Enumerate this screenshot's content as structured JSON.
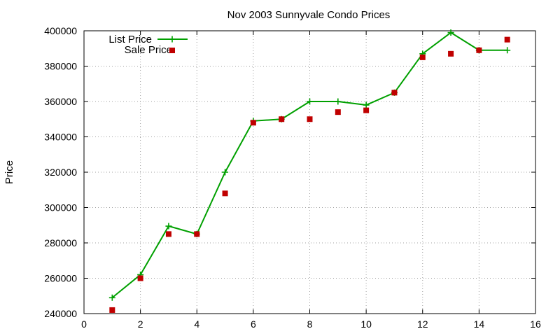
{
  "chart_data": {
    "type": "line",
    "title": "Nov 2003 Sunnyvale Condo Prices",
    "xlabel": "",
    "ylabel": "Price",
    "xlim": [
      0,
      16
    ],
    "ylim": [
      240000,
      400000
    ],
    "xticks": [
      0,
      2,
      4,
      6,
      8,
      10,
      12,
      14,
      16
    ],
    "yticks": [
      240000,
      260000,
      280000,
      300000,
      320000,
      340000,
      360000,
      380000,
      400000
    ],
    "grid": true,
    "legend_position": "top-left",
    "series": [
      {
        "name": "List Price",
        "style": "line-with-plus-markers",
        "color": "#00a000",
        "x": [
          1,
          2,
          3,
          4,
          5,
          6,
          7,
          8,
          9,
          10,
          11,
          12,
          13,
          14,
          15
        ],
        "y": [
          249000,
          262000,
          289500,
          285000,
          320000,
          349000,
          350000,
          360000,
          360000,
          358000,
          365000,
          387000,
          399000,
          389000,
          389000
        ]
      },
      {
        "name": "Sale Price",
        "style": "square-points",
        "color": "#c00000",
        "x": [
          1,
          2,
          3,
          4,
          5,
          6,
          7,
          8,
          9,
          10,
          11,
          12,
          13,
          14,
          15
        ],
        "y": [
          242000,
          260000,
          285000,
          285000,
          308000,
          348000,
          350000,
          350000,
          354000,
          355000,
          365000,
          385000,
          387000,
          389000,
          395000
        ]
      }
    ]
  }
}
